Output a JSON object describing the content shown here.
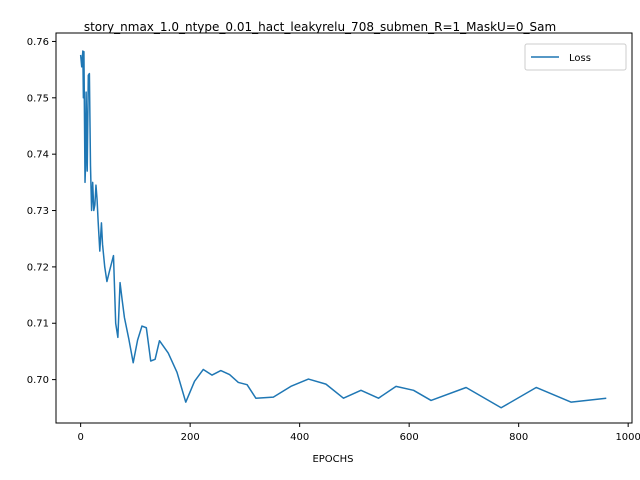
{
  "chart_data": {
    "type": "line",
    "title": "story_nmax_1.0_ntype_0.01_hact_leakyrelu_708_submen_R=1_MaskU=0_Sam",
    "xlabel": "EPOCHS",
    "ylabel": "",
    "xlim": [
      -45,
      1007
    ],
    "ylim": [
      0.6923,
      0.7615
    ],
    "xticks": [
      0,
      200,
      400,
      600,
      800,
      1000
    ],
    "yticks": [
      0.7,
      0.71,
      0.72,
      0.73,
      0.74,
      0.75,
      0.76
    ],
    "ytick_labels": [
      "0.70",
      "0.71",
      "0.72",
      "0.73",
      "0.74",
      "0.75",
      "0.76"
    ],
    "legend_position": "upper-right",
    "series": [
      {
        "name": "Loss",
        "color": "#1f77b4",
        "x": [
          0,
          2,
          4,
          5,
          6,
          8,
          9,
          10,
          12,
          14,
          16,
          18,
          20,
          22,
          24,
          26,
          28,
          30,
          32,
          35,
          38,
          40,
          44,
          48,
          52,
          56,
          60,
          64,
          68,
          72,
          76,
          80,
          88,
          96,
          104,
          112,
          120,
          128,
          136,
          144,
          160,
          176,
          192,
          208,
          224,
          240,
          256,
          272,
          288,
          304,
          320,
          352,
          384,
          416,
          448,
          480,
          512,
          544,
          576,
          608,
          640,
          704,
          768,
          832,
          896,
          960
        ],
        "y": [
          0.7576,
          0.7555,
          0.7583,
          0.75,
          0.7582,
          0.735,
          0.738,
          0.751,
          0.737,
          0.754,
          0.7543,
          0.738,
          0.73,
          0.735,
          0.73,
          0.731,
          0.7345,
          0.732,
          0.728,
          0.7228,
          0.7278,
          0.724,
          0.72,
          0.7174,
          0.719,
          0.7205,
          0.722,
          0.71,
          0.7075,
          0.7172,
          0.714,
          0.711,
          0.7072,
          0.703,
          0.707,
          0.7095,
          0.7092,
          0.7033,
          0.7036,
          0.7069,
          0.7047,
          0.7013,
          0.696,
          0.6997,
          0.7018,
          0.7008,
          0.7016,
          0.7009,
          0.6995,
          0.6991,
          0.6967,
          0.6969,
          0.6988,
          0.7001,
          0.6992,
          0.6967,
          0.6981,
          0.6967,
          0.6988,
          0.6981,
          0.6963,
          0.6986,
          0.695,
          0.6986,
          0.696,
          0.6967
        ]
      }
    ]
  }
}
